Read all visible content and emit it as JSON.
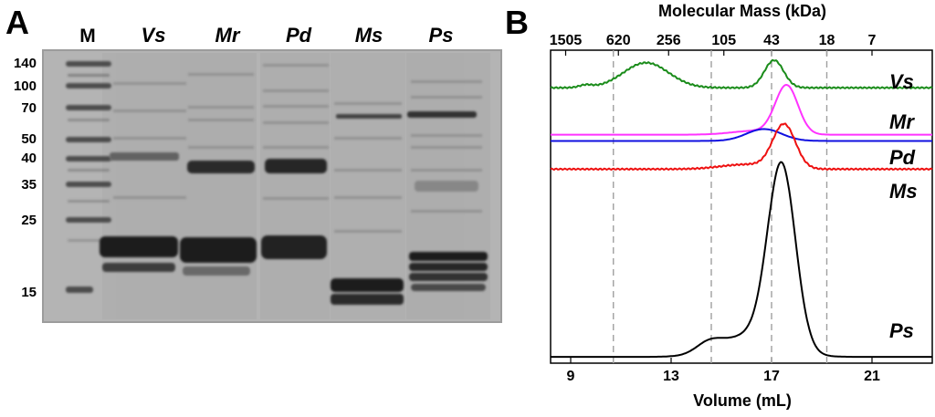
{
  "panel_a": {
    "label": "A",
    "marker_lane_label": "M",
    "lane_labels": [
      "Vs",
      "Mr",
      "Pd",
      "Ms",
      "Ps"
    ],
    "marker_sizes": [
      "140",
      "100",
      "70",
      "50",
      "40",
      "35",
      "25",
      "15"
    ]
  },
  "panel_b": {
    "label": "B",
    "top_axis_title": "Molecular Mass (kDa)",
    "bottom_axis_title": "Volume (mL)",
    "top_ticks": [
      "1505",
      "620",
      "256",
      "105",
      "43",
      "18",
      "7"
    ],
    "bottom_ticks": [
      "9",
      "13",
      "17",
      "21"
    ],
    "trace_labels": [
      "Vs",
      "Mr",
      "Pd",
      "Ms",
      "Ps"
    ]
  },
  "chart_data": {
    "type": "line",
    "xlabel": "Volume (mL)",
    "x2label": "Molecular Mass (kDa)",
    "xlim": [
      8.2,
      23.4
    ],
    "bottom_ticks": [
      9,
      13,
      17,
      21
    ],
    "top_ticks": [
      {
        "label": "1505",
        "volume": 8.8
      },
      {
        "label": "620",
        "volume": 10.9
      },
      {
        "label": "256",
        "volume": 12.9
      },
      {
        "label": "105",
        "volume": 15.1
      },
      {
        "label": "43",
        "volume": 17.0
      },
      {
        "label": "18",
        "volume": 19.2
      },
      {
        "label": "7",
        "volume": 21.0
      }
    ],
    "calibration_lines_volume": [
      10.7,
      14.6,
      17.0,
      19.2
    ],
    "grid": false,
    "series": [
      {
        "name": "Vs",
        "color": "#1a8c1a",
        "baseline": 0.88,
        "noise": 0.002,
        "peaks": [
          [
            9.6,
            0.25,
            0.008
          ],
          [
            12.0,
            0.9,
            0.08
          ],
          [
            17.1,
            0.38,
            0.088
          ]
        ]
      },
      {
        "name": "Mr",
        "color": "#ff33ff",
        "baseline": 0.73,
        "noise": 0,
        "peaks": [
          [
            16.3,
            0.9,
            0.012
          ],
          [
            17.6,
            0.45,
            0.155
          ]
        ]
      },
      {
        "name": "Pd",
        "color": "#1010e0",
        "baseline": 0.71,
        "noise": 0,
        "peaks": [
          [
            16.7,
            0.7,
            0.038
          ]
        ]
      },
      {
        "name": "Ms",
        "color": "#ee1111",
        "baseline": 0.62,
        "noise": 0.002,
        "peaks": [
          [
            16.0,
            1.0,
            0.015
          ],
          [
            17.5,
            0.45,
            0.14
          ]
        ]
      },
      {
        "name": "Ps",
        "color": "#000000",
        "baseline": 0.02,
        "noise": 0,
        "peaks": [
          [
            14.5,
            0.5,
            0.03
          ],
          [
            16.2,
            1.2,
            0.07
          ],
          [
            17.4,
            0.55,
            0.58
          ]
        ]
      }
    ]
  }
}
